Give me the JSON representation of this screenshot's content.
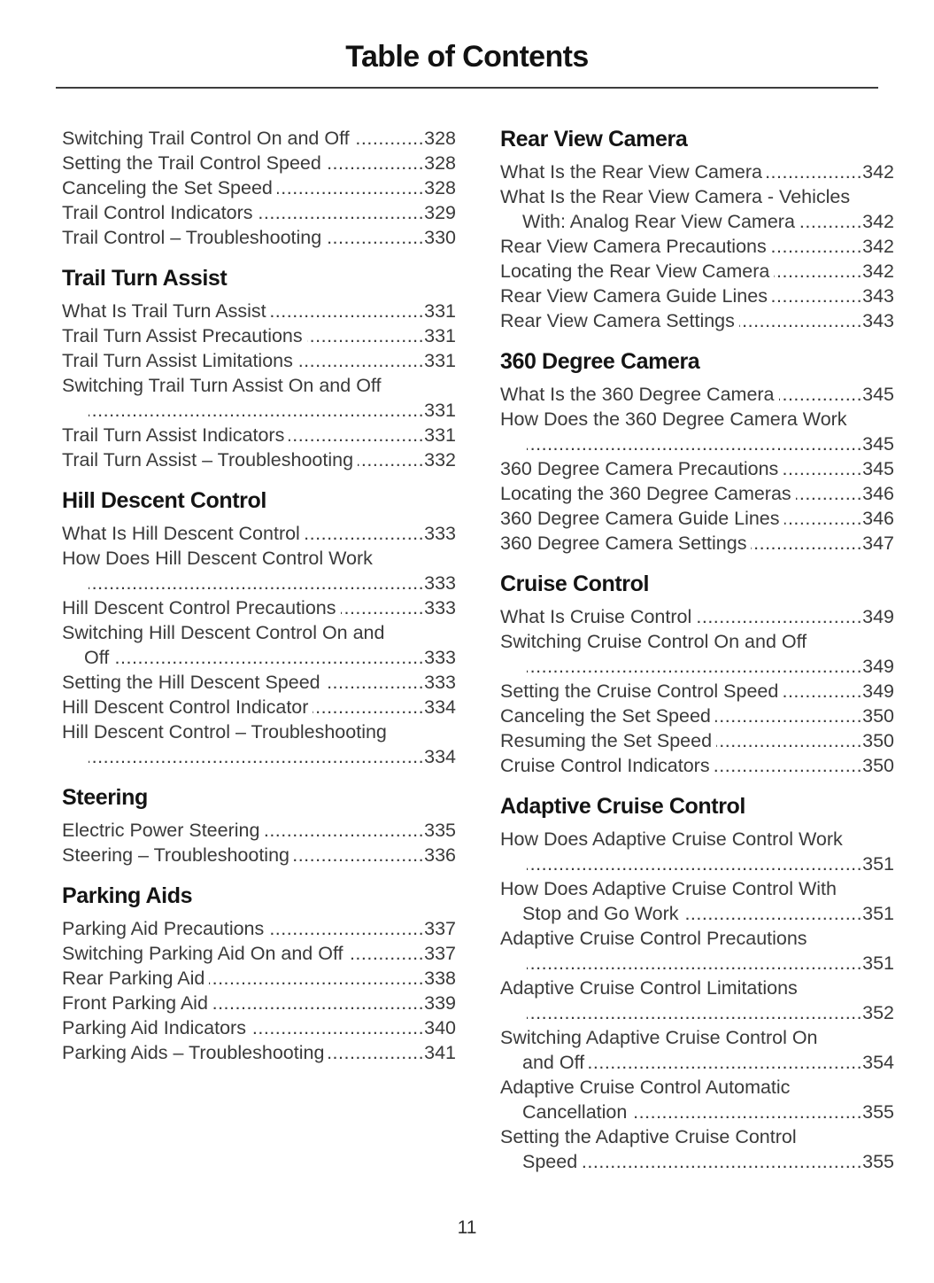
{
  "page": {
    "title": "Table of Contents",
    "page_number": "11",
    "leader": ".",
    "ink_color": "#3a3a3a",
    "heading_color": "#141414"
  },
  "columns": [
    {
      "sections": [
        {
          "heading": null,
          "entries": [
            {
              "label": "Switching Trail Control On and Off",
              "page": "328"
            },
            {
              "label": "Setting the Trail Control Speed",
              "page": "328"
            },
            {
              "label": "Canceling the Set Speed",
              "page": "328"
            },
            {
              "label": "Trail Control Indicators",
              "page": "329"
            },
            {
              "label": "Trail Control – Troubleshooting",
              "page": "330"
            }
          ]
        },
        {
          "heading": "Trail Turn Assist",
          "entries": [
            {
              "label": "What Is Trail Turn Assist",
              "page": "331"
            },
            {
              "label": "Trail Turn Assist Precautions",
              "page": "331"
            },
            {
              "label": "Trail Turn Assist Limitations",
              "page": "331"
            },
            {
              "label": "Switching Trail Turn Assist On and Off",
              "cont": "",
              "page": "331"
            },
            {
              "label": "Trail Turn Assist Indicators",
              "page": "331"
            },
            {
              "label": "Trail Turn Assist – Troubleshooting",
              "page": "332"
            }
          ]
        },
        {
          "heading": "Hill Descent Control",
          "entries": [
            {
              "label": "What Is Hill Descent Control",
              "page": "333"
            },
            {
              "label": "How Does Hill Descent Control Work",
              "cont": "",
              "page": "333"
            },
            {
              "label": "Hill Descent Control Precautions",
              "page": "333"
            },
            {
              "label": "Switching Hill Descent Control On and",
              "cont": "Off",
              "page": "333"
            },
            {
              "label": "Setting the Hill Descent Speed",
              "page": "333"
            },
            {
              "label": "Hill Descent Control Indicator",
              "page": "334"
            },
            {
              "label": "Hill Descent Control – Troubleshooting",
              "cont": "",
              "page": "334"
            }
          ]
        },
        {
          "heading": "Steering",
          "entries": [
            {
              "label": "Electric Power Steering",
              "page": "335"
            },
            {
              "label": "Steering – Troubleshooting",
              "page": "336"
            }
          ]
        },
        {
          "heading": "Parking Aids",
          "entries": [
            {
              "label": "Parking Aid Precautions",
              "page": "337"
            },
            {
              "label": "Switching Parking Aid On and Off",
              "page": "337"
            },
            {
              "label": "Rear Parking Aid",
              "page": "338"
            },
            {
              "label": "Front Parking Aid",
              "page": "339"
            },
            {
              "label": "Parking Aid Indicators",
              "page": "340"
            },
            {
              "label": "Parking Aids – Troubleshooting",
              "page": "341"
            }
          ]
        }
      ]
    },
    {
      "sections": [
        {
          "heading": "Rear View Camera",
          "entries": [
            {
              "label": "What Is the Rear View Camera",
              "page": "342"
            },
            {
              "label": "What Is the Rear View Camera - Vehicles",
              "cont": "With: Analog Rear View Camera",
              "page": "342"
            },
            {
              "label": "Rear View Camera Precautions",
              "page": "342"
            },
            {
              "label": "Locating the Rear View Camera",
              "page": "342"
            },
            {
              "label": "Rear View Camera Guide Lines",
              "page": "343"
            },
            {
              "label": "Rear View Camera Settings",
              "page": "343"
            }
          ]
        },
        {
          "heading": "360 Degree Camera",
          "entries": [
            {
              "label": "What Is the 360 Degree Camera",
              "page": "345"
            },
            {
              "label": "How Does the 360 Degree Camera Work",
              "cont": "",
              "page": "345"
            },
            {
              "label": "360 Degree Camera Precautions",
              "page": "345"
            },
            {
              "label": "Locating the 360 Degree Cameras",
              "page": "346"
            },
            {
              "label": "360 Degree Camera Guide Lines",
              "page": "346"
            },
            {
              "label": "360 Degree Camera Settings",
              "page": "347"
            }
          ]
        },
        {
          "heading": "Cruise Control",
          "entries": [
            {
              "label": "What Is Cruise Control",
              "page": "349"
            },
            {
              "label": "Switching Cruise Control On and Off",
              "cont": "",
              "page": "349"
            },
            {
              "label": "Setting the Cruise Control Speed",
              "page": "349"
            },
            {
              "label": "Canceling the Set Speed",
              "page": "350"
            },
            {
              "label": "Resuming the Set Speed",
              "page": "350"
            },
            {
              "label": "Cruise Control Indicators",
              "page": "350"
            }
          ]
        },
        {
          "heading": "Adaptive Cruise Control",
          "entries": [
            {
              "label": "How Does Adaptive Cruise Control Work",
              "cont": "",
              "page": "351"
            },
            {
              "label": "How Does Adaptive Cruise Control With",
              "cont": "Stop and Go Work",
              "page": "351"
            },
            {
              "label": "Adaptive Cruise Control Precautions",
              "cont": "",
              "page": "351"
            },
            {
              "label": "Adaptive Cruise Control Limitations",
              "cont": "",
              "page": "352"
            },
            {
              "label": "Switching Adaptive Cruise Control On",
              "cont": "and Off",
              "page": "354"
            },
            {
              "label": "Adaptive Cruise Control Automatic",
              "cont": "Cancellation",
              "page": "355"
            },
            {
              "label": "Setting the Adaptive Cruise Control",
              "cont": "Speed",
              "page": "355"
            }
          ]
        }
      ]
    }
  ]
}
